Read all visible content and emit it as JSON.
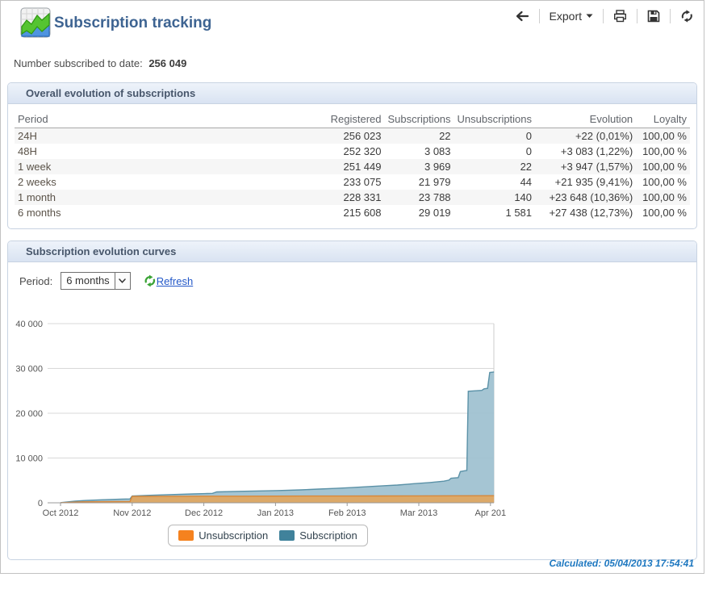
{
  "header": {
    "title": "Subscription tracking",
    "toolbar": {
      "export_label": "Export"
    }
  },
  "summary": {
    "label": "Number subscribed to date:",
    "value": "256 049"
  },
  "table_panel": {
    "title": "Overall evolution of subscriptions",
    "columns": [
      "Period",
      "Registered",
      "Subscriptions",
      "Unsubscriptions",
      "Evolution",
      "Loyalty"
    ],
    "rows": [
      {
        "period": "24H",
        "registered": "256 023",
        "subscriptions": "22",
        "unsubscriptions": "0",
        "evolution": "+22 (0,01%)",
        "loyalty": "100,00 %"
      },
      {
        "period": "48H",
        "registered": "252 320",
        "subscriptions": "3 083",
        "unsubscriptions": "0",
        "evolution": "+3 083 (1,22%)",
        "loyalty": "100,00 %"
      },
      {
        "period": "1 week",
        "registered": "251 449",
        "subscriptions": "3 969",
        "unsubscriptions": "22",
        "evolution": "+3 947 (1,57%)",
        "loyalty": "100,00 %"
      },
      {
        "period": "2 weeks",
        "registered": "233 075",
        "subscriptions": "21 979",
        "unsubscriptions": "44",
        "evolution": "+21 935 (9,41%)",
        "loyalty": "100,00 %"
      },
      {
        "period": "1 month",
        "registered": "228 331",
        "subscriptions": "23 788",
        "unsubscriptions": "140",
        "evolution": "+23 648 (10,36%)",
        "loyalty": "100,00 %"
      },
      {
        "period": "6 months",
        "registered": "215 608",
        "subscriptions": "29 019",
        "unsubscriptions": "1 581",
        "evolution": "+27 438 (12,73%)",
        "loyalty": "100,00 %"
      }
    ]
  },
  "chart_panel": {
    "title": "Subscription evolution curves",
    "period_label": "Period:",
    "period_value": "6 months",
    "refresh_label": "Refresh"
  },
  "chart_data": {
    "type": "area",
    "title": "",
    "xlabel": "",
    "ylabel": "",
    "ylim": [
      0,
      40000
    ],
    "yticks": [
      0,
      10000,
      20000,
      30000,
      40000
    ],
    "ytick_labels": [
      "0",
      "10 000",
      "20 000",
      "30 000",
      "40 000"
    ],
    "xtick_labels": [
      "Oct 2012",
      "Nov 2012",
      "Dec 2012",
      "Jan 2013",
      "Feb 2013",
      "Mar 2013",
      "Apr 201"
    ],
    "grid": "horizontal",
    "legend_position": "bottom",
    "series": [
      {
        "name": "Subscription",
        "color": "#9dc0cf",
        "stroke": "#5a91a7",
        "points": [
          [
            0,
            30
          ],
          [
            0.2,
            380
          ],
          [
            0.35,
            520
          ],
          [
            0.6,
            680
          ],
          [
            0.85,
            830
          ],
          [
            0.97,
            860
          ],
          [
            1.0,
            1530
          ],
          [
            1.25,
            1680
          ],
          [
            1.55,
            1830
          ],
          [
            1.85,
            1980
          ],
          [
            2.05,
            2080
          ],
          [
            2.12,
            2100
          ],
          [
            2.18,
            2430
          ],
          [
            2.5,
            2560
          ],
          [
            2.85,
            2670
          ],
          [
            3.05,
            2740
          ],
          [
            3.35,
            2890
          ],
          [
            3.6,
            3060
          ],
          [
            3.85,
            3230
          ],
          [
            4.05,
            3380
          ],
          [
            4.25,
            3560
          ],
          [
            4.5,
            3800
          ],
          [
            4.7,
            3960
          ],
          [
            4.95,
            4280
          ],
          [
            5.15,
            4520
          ],
          [
            5.35,
            4820
          ],
          [
            5.42,
            5060
          ],
          [
            5.45,
            5480
          ],
          [
            5.55,
            5620
          ],
          [
            5.58,
            6980
          ],
          [
            5.64,
            7150
          ],
          [
            5.67,
            7220
          ],
          [
            5.69,
            24900
          ],
          [
            5.88,
            25100
          ],
          [
            5.91,
            25450
          ],
          [
            5.96,
            25550
          ],
          [
            5.99,
            29100
          ],
          [
            6.05,
            29200
          ]
        ]
      },
      {
        "name": "Unsubscription",
        "color": "#e1a660",
        "stroke": "#d8883a",
        "points": [
          [
            0,
            20
          ],
          [
            0.3,
            210
          ],
          [
            0.6,
            260
          ],
          [
            0.97,
            300
          ],
          [
            1.0,
            1430
          ],
          [
            1.5,
            1455
          ],
          [
            2.0,
            1470
          ],
          [
            2.5,
            1480
          ],
          [
            3.0,
            1495
          ],
          [
            3.5,
            1505
          ],
          [
            4.0,
            1520
          ],
          [
            4.5,
            1535
          ],
          [
            5.0,
            1550
          ],
          [
            5.5,
            1562
          ],
          [
            6.05,
            1581
          ]
        ]
      }
    ],
    "legend": [
      {
        "label": "Unsubscription",
        "color": "#f5821f"
      },
      {
        "label": "Subscription",
        "color": "#40829b"
      }
    ]
  },
  "footer": {
    "calculated": "Calculated: 05/04/2013 17:54:41"
  }
}
